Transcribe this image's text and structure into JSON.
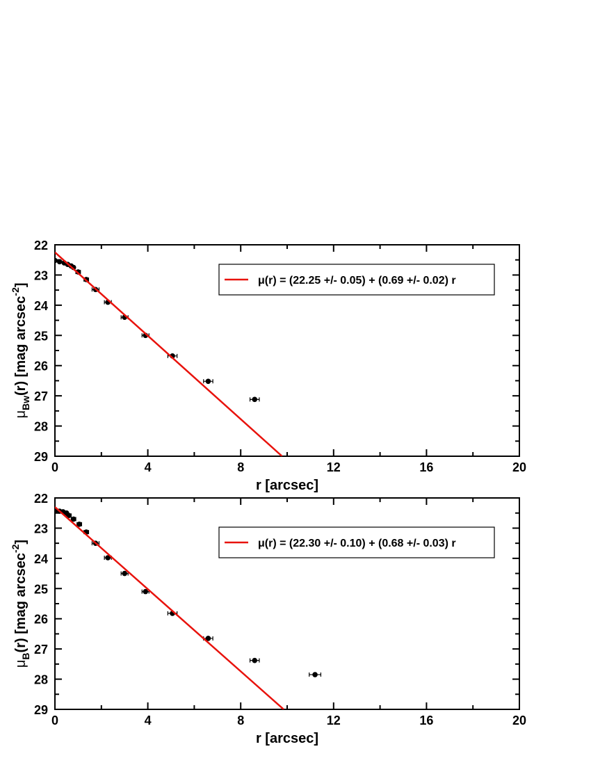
{
  "chart_data": [
    {
      "type": "scatter",
      "xlabel": "r [arcsec]",
      "ylabel": {
        "mu": "μ",
        "sub": "Bw",
        "mid": "(r) [mag arcsec",
        "sup": "-2",
        "end": "]"
      },
      "xlim": [
        0,
        20
      ],
      "xticks": [
        0,
        4,
        8,
        12,
        16,
        20
      ],
      "xminorticks": [
        2,
        6,
        10,
        14,
        18
      ],
      "ylim": [
        29,
        22
      ],
      "yticks": [
        22,
        23,
        24,
        25,
        26,
        27,
        28,
        29
      ],
      "yminorticks": [
        22.5,
        23.5,
        24.5,
        25.5,
        26.5,
        27.5,
        28.5
      ],
      "legend": "upper right",
      "series": [
        {
          "type": "points",
          "color": "#000000",
          "x": [
            0,
            0.2,
            0.4,
            0.55,
            0.7,
            0.8,
            1.0,
            1.35,
            1.75,
            2.28,
            3.0,
            3.9,
            5.06,
            6.6,
            8.6
          ],
          "values": [
            22.52,
            22.56,
            22.6,
            22.65,
            22.7,
            22.75,
            22.9,
            23.15,
            23.48,
            23.9,
            24.4,
            25.0,
            25.68,
            26.52,
            27.12
          ],
          "xerr": [
            0.05,
            0.05,
            0.05,
            0.05,
            0.05,
            0.05,
            0.1,
            0.1,
            0.15,
            0.15,
            0.15,
            0.15,
            0.2,
            0.2,
            0.2
          ]
        },
        {
          "type": "line",
          "name": "μ(r) = (22.25 +/- 0.05) + (0.69 +/- 0.02) r",
          "color": "#e8120c",
          "x": [
            0,
            9.78
          ],
          "values": [
            22.25,
            29
          ]
        }
      ]
    },
    {
      "type": "scatter",
      "xlabel": "r [arcsec]",
      "ylabel": {
        "mu": "μ",
        "sub": "B",
        "mid": "(r) [mag arcsec",
        "sup": "-2",
        "end": "]"
      },
      "xlim": [
        0,
        20
      ],
      "xticks": [
        0,
        4,
        8,
        12,
        16,
        20
      ],
      "xminorticks": [
        2,
        6,
        10,
        14,
        18
      ],
      "ylim": [
        29,
        22
      ],
      "yticks": [
        22,
        23,
        24,
        25,
        26,
        27,
        28,
        29
      ],
      "yminorticks": [
        22.5,
        23.5,
        24.5,
        25.5,
        26.5,
        27.5,
        28.5
      ],
      "legend": "upper right",
      "series": [
        {
          "type": "points",
          "color": "#000000",
          "x": [
            0,
            0.2,
            0.35,
            0.5,
            0.6,
            0.8,
            1.05,
            1.35,
            1.75,
            2.28,
            3.0,
            3.9,
            5.06,
            6.6,
            8.6,
            11.2
          ],
          "values": [
            22.42,
            22.44,
            22.46,
            22.5,
            22.58,
            22.7,
            22.87,
            23.13,
            23.5,
            23.98,
            24.5,
            25.1,
            25.82,
            26.65,
            27.38,
            27.85
          ],
          "xerr": [
            0.05,
            0.05,
            0.05,
            0.05,
            0.1,
            0.1,
            0.1,
            0.1,
            0.15,
            0.15,
            0.15,
            0.15,
            0.2,
            0.2,
            0.2,
            0.25
          ]
        },
        {
          "type": "line",
          "name": "μ(r) = (22.30 +/- 0.10) + (0.68 +/- 0.03) r",
          "color": "#e8120c",
          "x": [
            0,
            9.85
          ],
          "values": [
            22.3,
            29
          ]
        }
      ]
    }
  ]
}
